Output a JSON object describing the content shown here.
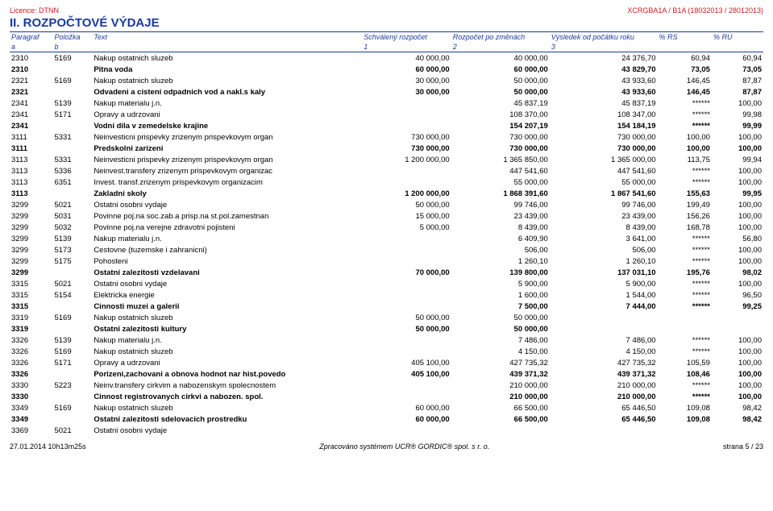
{
  "header": {
    "licence_left": "Licence: DTNN",
    "licence_right": "XCRGBA1A / B1A (18032013 / 28012013)",
    "title": "II. ROZPOČTOVÉ VÝDAJE"
  },
  "columns": {
    "h1": [
      "Paragraf",
      "Položka",
      "Text",
      "Schválený rozpočet",
      "Rozpočet po změnách",
      "Výsledek od počátku roku",
      "% RS",
      "% RU"
    ],
    "h2": [
      "a",
      "b",
      "",
      "1",
      "2",
      "3",
      "",
      ""
    ]
  },
  "rows": [
    {
      "b": false,
      "c": [
        "2310",
        "5169",
        "Nakup ostatnich sluzeb",
        "40 000,00",
        "40 000,00",
        "24 376,70",
        "60,94",
        "60,94"
      ]
    },
    {
      "b": true,
      "c": [
        "2310",
        "",
        "Pitna voda",
        "60 000,00",
        "60 000,00",
        "43 829,70",
        "73,05",
        "73,05"
      ]
    },
    {
      "b": false,
      "c": [
        "2321",
        "5169",
        "Nakup ostatnich sluzeb",
        "30 000,00",
        "50 000,00",
        "43 933,60",
        "146,45",
        "87,87"
      ]
    },
    {
      "b": true,
      "c": [
        "2321",
        "",
        "Odvadeni a cisteni odpadnich vod a nakl.s kaly",
        "30 000,00",
        "50 000,00",
        "43 933,60",
        "146,45",
        "87,87"
      ]
    },
    {
      "b": false,
      "c": [
        "2341",
        "5139",
        "Nakup materialu j.n.",
        "",
        "45 837,19",
        "45 837,19",
        "******",
        "100,00"
      ]
    },
    {
      "b": false,
      "c": [
        "2341",
        "5171",
        "Opravy a udrzovani",
        "",
        "108 370,00",
        "108 347,00",
        "******",
        "99,98"
      ]
    },
    {
      "b": true,
      "c": [
        "2341",
        "",
        "Vodni dila v zemedelske krajine",
        "",
        "154 207,19",
        "154 184,19",
        "******",
        "99,99"
      ]
    },
    {
      "b": false,
      "c": [
        "3111",
        "5331",
        "Neinvesticni prispevky zrizenym prispevkovym organ",
        "730 000,00",
        "730 000,00",
        "730 000,00",
        "100,00",
        "100,00"
      ]
    },
    {
      "b": true,
      "c": [
        "3111",
        "",
        "Predskolni zarizeni",
        "730 000,00",
        "730 000,00",
        "730 000,00",
        "100,00",
        "100,00"
      ]
    },
    {
      "b": false,
      "c": [
        "3113",
        "5331",
        "Neinvesticni prispevky zrizenym prispevkovym organ",
        "1 200 000,00",
        "1 365 850,00",
        "1 365 000,00",
        "113,75",
        "99,94"
      ]
    },
    {
      "b": false,
      "c": [
        "3113",
        "5336",
        "Neinvest.transfery zrizenym prispevkovym organizac",
        "",
        "447 541,60",
        "447 541,60",
        "******",
        "100,00"
      ]
    },
    {
      "b": false,
      "c": [
        "3113",
        "6351",
        "Invest. transf.zrizenym prispevkovym organizacim",
        "",
        "55 000,00",
        "55 000,00",
        "******",
        "100,00"
      ]
    },
    {
      "b": true,
      "c": [
        "3113",
        "",
        "Zakladni skoly",
        "1 200 000,00",
        "1 868 391,60",
        "1 867 541,60",
        "155,63",
        "99,95"
      ]
    },
    {
      "b": false,
      "c": [
        "3299",
        "5021",
        "Ostatni osobni vydaje",
        "50 000,00",
        "99 746,00",
        "99 746,00",
        "199,49",
        "100,00"
      ]
    },
    {
      "b": false,
      "c": [
        "3299",
        "5031",
        "Povinne poj.na soc.zab.a prisp.na st.pol.zamestnan",
        "15 000,00",
        "23 439,00",
        "23 439,00",
        "156,26",
        "100,00"
      ]
    },
    {
      "b": false,
      "c": [
        "3299",
        "5032",
        "Povinne poj.na verejne zdravotni pojisteni",
        "5 000,00",
        "8 439,00",
        "8 439,00",
        "168,78",
        "100,00"
      ]
    },
    {
      "b": false,
      "c": [
        "3299",
        "5139",
        "Nakup materialu j.n.",
        "",
        "6 409,90",
        "3 641,00",
        "******",
        "56,80"
      ]
    },
    {
      "b": false,
      "c": [
        "3299",
        "5173",
        "Cestovne (tuzemske i zahranicni)",
        "",
        "506,00",
        "506,00",
        "******",
        "100,00"
      ]
    },
    {
      "b": false,
      "c": [
        "3299",
        "5175",
        "Pohosteni",
        "",
        "1 260,10",
        "1 260,10",
        "******",
        "100,00"
      ]
    },
    {
      "b": true,
      "c": [
        "3299",
        "",
        "Ostatni zalezitosti vzdelavani",
        "70 000,00",
        "139 800,00",
        "137 031,10",
        "195,76",
        "98,02"
      ]
    },
    {
      "b": false,
      "c": [
        "3315",
        "5021",
        "Ostatni osobni vydaje",
        "",
        "5 900,00",
        "5 900,00",
        "******",
        "100,00"
      ]
    },
    {
      "b": false,
      "c": [
        "3315",
        "5154",
        "Elektricka energie",
        "",
        "1 600,00",
        "1 544,00",
        "******",
        "96,50"
      ]
    },
    {
      "b": true,
      "c": [
        "3315",
        "",
        "Cinnosti muzei a galerii",
        "",
        "7 500,00",
        "7 444,00",
        "******",
        "99,25"
      ]
    },
    {
      "b": false,
      "c": [
        "3319",
        "5169",
        "Nakup ostatnich sluzeb",
        "50 000,00",
        "50 000,00",
        "",
        "",
        ""
      ]
    },
    {
      "b": true,
      "c": [
        "3319",
        "",
        "Ostatni zalezitosti kultury",
        "50 000,00",
        "50 000,00",
        "",
        "",
        ""
      ]
    },
    {
      "b": false,
      "c": [
        "3326",
        "5139",
        "Nakup materialu j.n.",
        "",
        "7 486,00",
        "7 486,00",
        "******",
        "100,00"
      ]
    },
    {
      "b": false,
      "c": [
        "3326",
        "5169",
        "Nakup ostatnich sluzeb",
        "",
        "4 150,00",
        "4 150,00",
        "******",
        "100,00"
      ]
    },
    {
      "b": false,
      "c": [
        "3326",
        "5171",
        "Opravy a udrzovani",
        "405 100,00",
        "427 735,32",
        "427 735,32",
        "105,59",
        "100,00"
      ]
    },
    {
      "b": true,
      "c": [
        "3326",
        "",
        "Porizeni,zachovani a obnova hodnot nar hist.povedo",
        "405 100,00",
        "439 371,32",
        "439 371,32",
        "108,46",
        "100,00"
      ]
    },
    {
      "b": false,
      "c": [
        "3330",
        "5223",
        "Neinv.transfery cirkvim a nabozenskym spolecnostem",
        "",
        "210 000,00",
        "210 000,00",
        "******",
        "100,00"
      ]
    },
    {
      "b": true,
      "c": [
        "3330",
        "",
        "Cinnost registrovanych cirkvi a nabozen. spol.",
        "",
        "210 000,00",
        "210 000,00",
        "******",
        "100,00"
      ]
    },
    {
      "b": false,
      "c": [
        "3349",
        "5169",
        "Nakup ostatnich sluzeb",
        "60 000,00",
        "66 500,00",
        "65 446,50",
        "109,08",
        "98,42"
      ]
    },
    {
      "b": true,
      "c": [
        "3349",
        "",
        "Ostatni zalezitosti sdelovacich prostredku",
        "60 000,00",
        "66 500,00",
        "65 446,50",
        "109,08",
        "98,42"
      ]
    },
    {
      "b": false,
      "c": [
        "3369",
        "5021",
        "Ostatni osobni vydaje",
        "",
        "",
        "",
        "",
        ""
      ]
    }
  ],
  "footer": {
    "left": "27.01.2014 10h13m25s",
    "mid": "Zpracováno systémem UCR® GORDIC® spol. s r. o.",
    "right": "strana 5 / 23"
  },
  "colors": {
    "blue": "#1a3a9e",
    "red": "#c81e1e",
    "text": "#000000",
    "bg": "#ffffff"
  }
}
